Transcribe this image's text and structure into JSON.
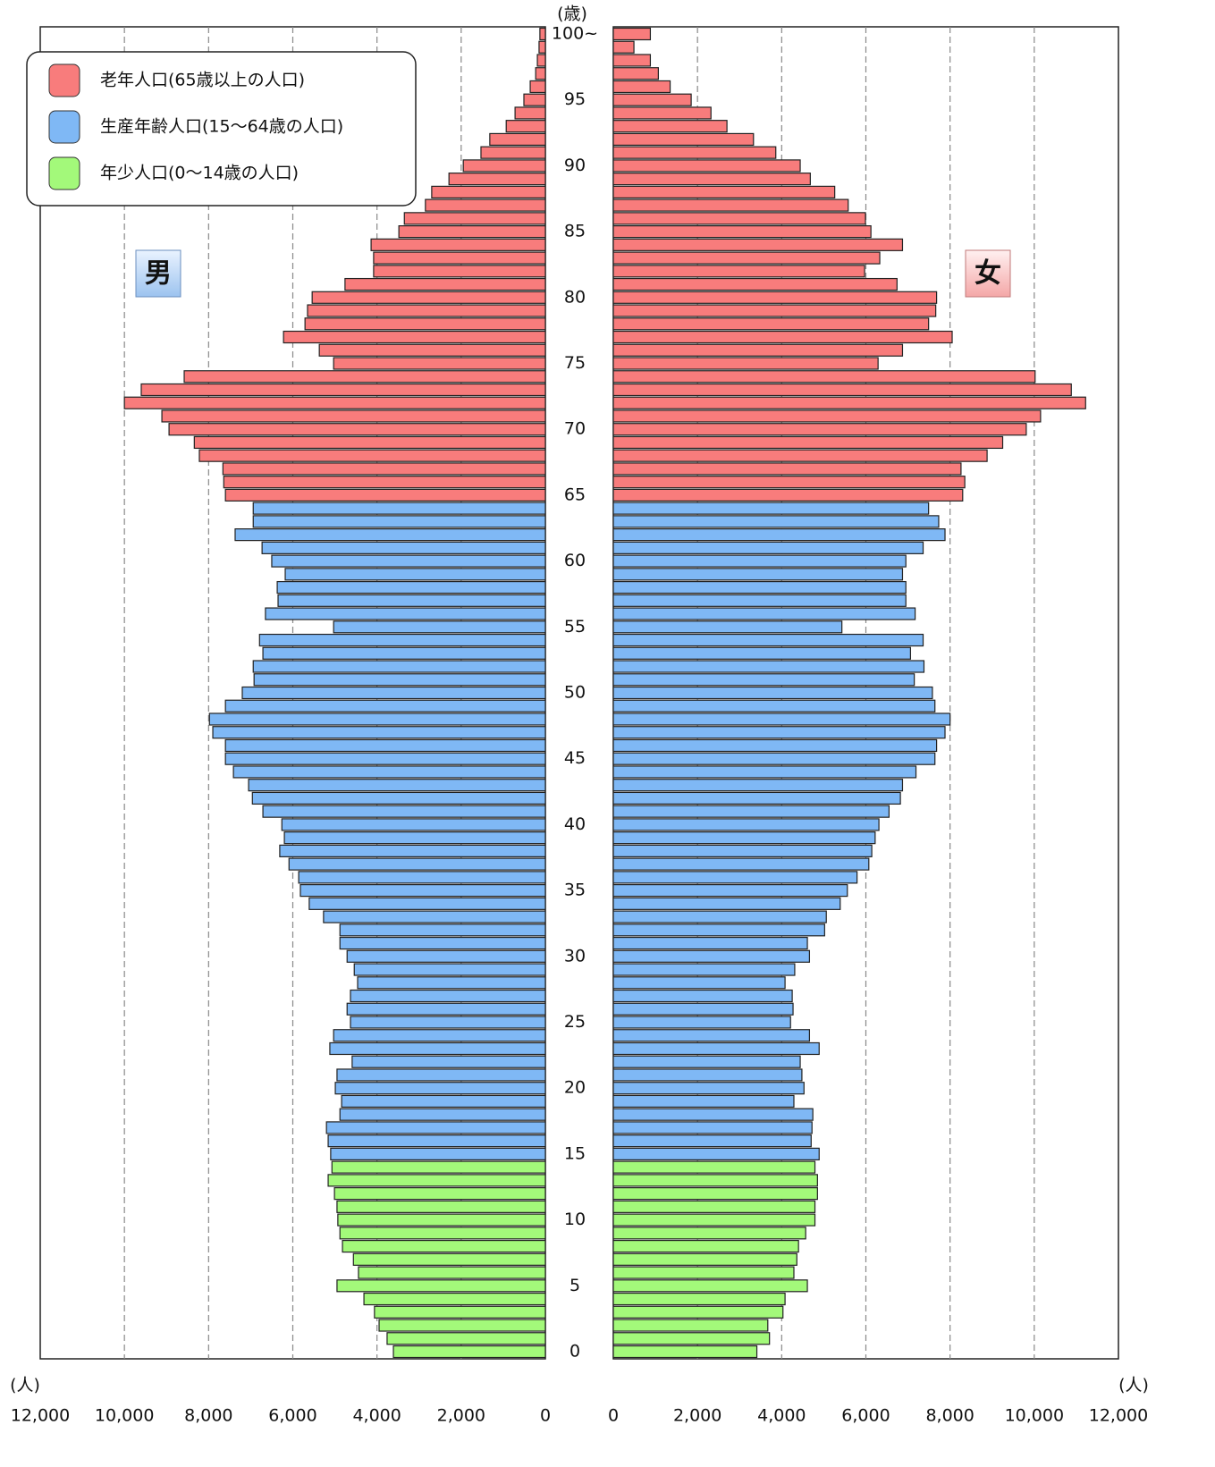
{
  "chart_data": {
    "type": "pyramid",
    "y_label": "(歳)",
    "x_label": "(人)",
    "sides": [
      "男",
      "女"
    ],
    "xlim": [
      0,
      12000
    ],
    "xticks": [
      0,
      {
        "value": 2000,
        "label": "2,000"
      },
      {
        "value": 4000,
        "label": "4,000"
      },
      {
        "value": 6000,
        "label": "6,000"
      },
      {
        "value": 8000,
        "label": "8,000"
      },
      {
        "value": 10000,
        "label": "10,000"
      },
      {
        "value": 12000,
        "label": "12,000"
      }
    ],
    "grid": true,
    "groups": [
      {
        "name": "老年人口(65歳以上の人口)",
        "color": "#f87c7c",
        "categories": [
          65,
          null,
          null,
          null,
          null,
          70,
          null,
          null,
          null,
          null,
          75,
          null,
          null,
          null,
          null,
          80,
          null,
          null,
          null,
          null,
          85,
          null,
          null,
          null,
          null,
          90,
          null,
          null,
          null,
          null,
          95,
          null,
          null,
          null,
          null,
          "100~"
        ],
        "male": [
          7600,
          7640,
          7660,
          8220,
          8340,
          8940,
          9110,
          10000,
          9600,
          8580,
          5030,
          5370,
          6220,
          5710,
          5650,
          5540,
          4760,
          4080,
          4080,
          4140,
          3480,
          3350,
          2850,
          2700,
          2290,
          1950,
          1530,
          1320,
          930,
          720,
          510,
          360,
          230,
          190,
          150,
          130
        ],
        "female": [
          8300,
          8350,
          8260,
          8880,
          9250,
          9810,
          10150,
          11220,
          10880,
          10020,
          6290,
          6870,
          8050,
          7490,
          7660,
          7680,
          6740,
          5970,
          6330,
          6870,
          6120,
          5990,
          5580,
          5260,
          4680,
          4440,
          3860,
          3330,
          2700,
          2320,
          1850,
          1350,
          1070,
          880,
          490,
          880
        ]
      },
      {
        "name": "生産年齢人口(15〜64歳の人口)",
        "color": "#7fb8f5",
        "categories": [
          15,
          null,
          null,
          null,
          null,
          20,
          null,
          null,
          null,
          null,
          25,
          null,
          null,
          null,
          null,
          30,
          null,
          null,
          null,
          null,
          35,
          null,
          null,
          null,
          null,
          40,
          null,
          null,
          null,
          null,
          45,
          null,
          null,
          null,
          null,
          50,
          null,
          null,
          null,
          null,
          55,
          null,
          null,
          null,
          null,
          60,
          null,
          null,
          null,
          null
        ],
        "male": [
          5100,
          5160,
          5200,
          4880,
          4840,
          4990,
          4950,
          4590,
          5120,
          5030,
          4630,
          4710,
          4630,
          4460,
          4540,
          4710,
          4880,
          4880,
          5270,
          5610,
          5820,
          5860,
          6090,
          6310,
          6200,
          6260,
          6710,
          6960,
          7050,
          7410,
          7600,
          7600,
          7900,
          7980,
          7600,
          7200,
          6920,
          6940,
          6710,
          6790,
          5030,
          6650,
          6350,
          6370,
          6180,
          6500,
          6730,
          7370,
          6940,
          6940
        ],
        "female": [
          4890,
          4700,
          4720,
          4740,
          4290,
          4530,
          4480,
          4440,
          4890,
          4660,
          4210,
          4270,
          4250,
          4080,
          4310,
          4660,
          4610,
          5020,
          5060,
          5390,
          5560,
          5790,
          6070,
          6140,
          6220,
          6310,
          6550,
          6820,
          6870,
          7190,
          7640,
          7680,
          7880,
          8000,
          7640,
          7580,
          7150,
          7380,
          7060,
          7360,
          5430,
          7170,
          6950,
          6950,
          6870,
          6950,
          7360,
          7880,
          7730,
          7490
        ]
      },
      {
        "name": "年少人口(0〜14歳の人口)",
        "color": "#a3f97a",
        "categories": [
          0,
          null,
          null,
          null,
          null,
          5,
          null,
          null,
          null,
          null,
          10,
          null,
          null,
          null,
          null
        ],
        "male": [
          3610,
          3760,
          3950,
          4060,
          4310,
          4950,
          4440,
          4560,
          4820,
          4880,
          4930,
          4950,
          5010,
          5160,
          5070
        ],
        "female": [
          3410,
          3710,
          3670,
          4030,
          4080,
          4610,
          4290,
          4360,
          4400,
          4570,
          4790,
          4790,
          4850,
          4850,
          4790
        ]
      }
    ]
  }
}
